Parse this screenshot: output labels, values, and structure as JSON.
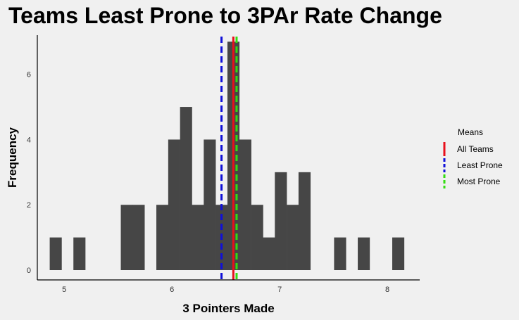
{
  "chart_data": {
    "type": "bar",
    "title": "Teams Least Prone to 3PAr Rate Change",
    "xlabel": "3 Pointers Made",
    "ylabel": "Frequency",
    "xlim": [
      4.75,
      8.3
    ],
    "ylim": [
      0,
      7.2
    ],
    "x_ticks": [
      5,
      6,
      7,
      8
    ],
    "y_ticks": [
      0,
      2,
      4,
      6
    ],
    "bin_width": 0.11,
    "bar_color": "#464646",
    "bins": [
      {
        "x": 4.92,
        "count": 1
      },
      {
        "x": 5.14,
        "count": 1
      },
      {
        "x": 5.58,
        "count": 2
      },
      {
        "x": 5.69,
        "count": 2
      },
      {
        "x": 5.91,
        "count": 2
      },
      {
        "x": 6.02,
        "count": 4
      },
      {
        "x": 6.13,
        "count": 5
      },
      {
        "x": 6.24,
        "count": 2
      },
      {
        "x": 6.35,
        "count": 4
      },
      {
        "x": 6.46,
        "count": 2
      },
      {
        "x": 6.57,
        "count": 7
      },
      {
        "x": 6.68,
        "count": 4
      },
      {
        "x": 6.79,
        "count": 2
      },
      {
        "x": 6.9,
        "count": 1
      },
      {
        "x": 7.01,
        "count": 3
      },
      {
        "x": 7.12,
        "count": 2
      },
      {
        "x": 7.23,
        "count": 3
      },
      {
        "x": 7.56,
        "count": 1
      },
      {
        "x": 7.78,
        "count": 1
      },
      {
        "x": 8.1,
        "count": 1
      }
    ],
    "mean_lines": [
      {
        "name": "All Teams",
        "x": 6.57,
        "color": "#e8101c",
        "dash": "solid"
      },
      {
        "name": "Least Prone",
        "x": 6.46,
        "color": "#1010d8",
        "dash": "dashed"
      },
      {
        "name": "Most Prone",
        "x": 6.6,
        "color": "#33dd11",
        "dash": "dashed"
      }
    ],
    "legend_title": "Means",
    "legend_position": "right",
    "grid": false
  }
}
